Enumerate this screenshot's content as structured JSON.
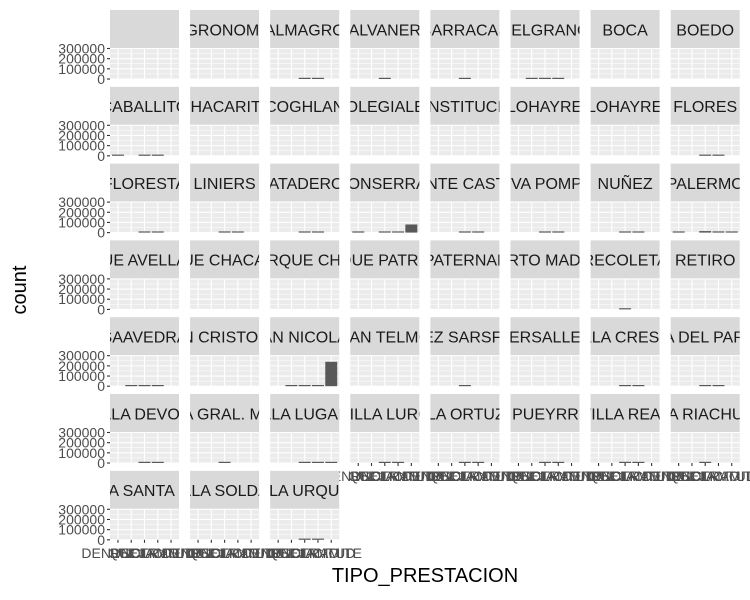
{
  "chart_data": {
    "type": "bar",
    "xlabel": "TIPO_PRESTACION",
    "ylabel": "count",
    "y_ticks": [
      0,
      100000,
      200000,
      300000
    ],
    "y_tick_labels": [
      "0",
      "100000",
      "200000",
      "300000"
    ],
    "ylim": [
      0,
      300000
    ],
    "categories": [
      "DENUNCIA",
      "QUEJA",
      "RECLAMO",
      "SOLICITUD",
      "TRAMITE"
    ],
    "x_tick_labels_visible": [
      "DENUNCIA",
      "QUEJA",
      "RECLAMO",
      "SOLICITUD",
      "TRAMITE"
    ],
    "grid": true,
    "facets": [
      {
        "label": "",
        "values": [
          0,
          0,
          0,
          0,
          0
        ]
      },
      {
        "label": "AGRONOMIA",
        "values": [
          0,
          0,
          0,
          0,
          0
        ]
      },
      {
        "label": "ALMAGRO",
        "values": [
          0,
          0,
          8000,
          8000,
          0
        ]
      },
      {
        "label": "BALVANERA",
        "values": [
          0,
          0,
          5000,
          0,
          0
        ]
      },
      {
        "label": "BARRACAS",
        "values": [
          0,
          0,
          4000,
          0,
          0
        ]
      },
      {
        "label": "BELGRANO",
        "values": [
          0,
          6000,
          6000,
          6000,
          0
        ]
      },
      {
        "label": "BOCA",
        "values": [
          0,
          0,
          0,
          0,
          0
        ]
      },
      {
        "label": "BOEDO",
        "values": [
          0,
          0,
          0,
          0,
          0
        ]
      },
      {
        "label": "CABALLITO",
        "values": [
          7000,
          0,
          7000,
          7000,
          0
        ]
      },
      {
        "label": "CHACARITA",
        "values": [
          0,
          0,
          0,
          0,
          0
        ]
      },
      {
        "label": "COGHLAN",
        "values": [
          0,
          0,
          0,
          0,
          0
        ]
      },
      {
        "label": "COLEGIALES",
        "values": [
          0,
          0,
          0,
          0,
          0
        ]
      },
      {
        "label": "CONSTITUCION",
        "values": [
          0,
          0,
          0,
          0,
          0
        ]
      },
      {
        "label": "FLOHAYRES",
        "values": [
          0,
          0,
          0,
          0,
          0
        ]
      },
      {
        "label": "FLOHAYRES",
        "values": [
          0,
          0,
          0,
          0,
          0
        ]
      },
      {
        "label": "FLORES",
        "values": [
          0,
          0,
          6000,
          6000,
          0
        ]
      },
      {
        "label": "FLORESTA",
        "values": [
          0,
          0,
          5000,
          5000,
          0
        ]
      },
      {
        "label": "LINIERS",
        "values": [
          0,
          0,
          5000,
          5000,
          0
        ]
      },
      {
        "label": "MATADEROS",
        "values": [
          0,
          0,
          5000,
          5000,
          0
        ]
      },
      {
        "label": "MONSERRAT",
        "values": [
          5000,
          0,
          8000,
          8000,
          80000
        ]
      },
      {
        "label": "MONTE CASTRO",
        "values": [
          0,
          0,
          5000,
          5000,
          0
        ]
      },
      {
        "label": "NUEVA POMPEYA",
        "values": [
          0,
          0,
          5000,
          5000,
          0
        ]
      },
      {
        "label": "NUÑEZ",
        "values": [
          0,
          0,
          5000,
          5000,
          0
        ]
      },
      {
        "label": "PALERMO",
        "values": [
          5000,
          0,
          15000,
          12000,
          5000
        ]
      },
      {
        "label": "PARQUE AVELLANEDA",
        "values": [
          0,
          0,
          0,
          0,
          0
        ]
      },
      {
        "label": "PARQUE CHACABUCO",
        "values": [
          0,
          0,
          0,
          0,
          0
        ]
      },
      {
        "label": "PARQUE CHAS",
        "values": [
          0,
          0,
          0,
          0,
          0
        ]
      },
      {
        "label": "PARQUE PATRICIOS",
        "values": [
          0,
          0,
          0,
          0,
          0
        ]
      },
      {
        "label": "PATERNAL",
        "values": [
          0,
          0,
          0,
          0,
          0
        ]
      },
      {
        "label": "PUERTO MADERO",
        "values": [
          0,
          0,
          0,
          0,
          0
        ]
      },
      {
        "label": "RECOLETA",
        "values": [
          0,
          0,
          6000,
          0,
          0
        ]
      },
      {
        "label": "RETIRO",
        "values": [
          0,
          0,
          0,
          0,
          0
        ]
      },
      {
        "label": "SAAVEDRA",
        "values": [
          0,
          5000,
          5000,
          5000,
          0
        ]
      },
      {
        "label": "SAN CRISTOBAL",
        "values": [
          0,
          0,
          0,
          0,
          0
        ]
      },
      {
        "label": "SAN NICOLAS",
        "values": [
          0,
          7000,
          7000,
          7000,
          240000
        ]
      },
      {
        "label": "SAN TELMO",
        "values": [
          0,
          0,
          0,
          0,
          0
        ]
      },
      {
        "label": "VELEZ SARSFIELD",
        "values": [
          0,
          0,
          5000,
          0,
          0
        ]
      },
      {
        "label": "VERSALLES",
        "values": [
          0,
          0,
          0,
          0,
          0
        ]
      },
      {
        "label": "VILLA CRESPO",
        "values": [
          0,
          0,
          5000,
          5000,
          0
        ]
      },
      {
        "label": "VILLA DEL PARQUE",
        "values": [
          0,
          0,
          5000,
          5000,
          0
        ]
      },
      {
        "label": "VILLA DEVOTO",
        "values": [
          0,
          0,
          5000,
          5000,
          0
        ]
      },
      {
        "label": "VILLA GRAL. MITRE",
        "values": [
          0,
          0,
          4000,
          0,
          0
        ]
      },
      {
        "label": "VILLA LUGANO",
        "values": [
          0,
          0,
          7000,
          6000,
          6000
        ]
      },
      {
        "label": "VILLA LURO",
        "values": [
          0,
          0,
          5000,
          4000,
          0
        ]
      },
      {
        "label": "VILLA ORTUZAR",
        "values": [
          0,
          0,
          5000,
          4000,
          0
        ]
      },
      {
        "label": "VILLA PUEYRREDON",
        "values": [
          0,
          0,
          5000,
          5000,
          0
        ]
      },
      {
        "label": "VILLA REAL",
        "values": [
          0,
          0,
          5000,
          5000,
          0
        ]
      },
      {
        "label": "VILLA RIACHUELO",
        "values": [
          0,
          0,
          5000,
          0,
          0
        ]
      },
      {
        "label": "VILLA SANTA RITA",
        "values": [
          0,
          0,
          0,
          0,
          0
        ]
      },
      {
        "label": "VILLA SOLDATI",
        "values": [
          0,
          0,
          0,
          0,
          0
        ]
      },
      {
        "label": "VILLA URQUIZA",
        "values": [
          0,
          0,
          7000,
          7000,
          0
        ]
      }
    ]
  }
}
